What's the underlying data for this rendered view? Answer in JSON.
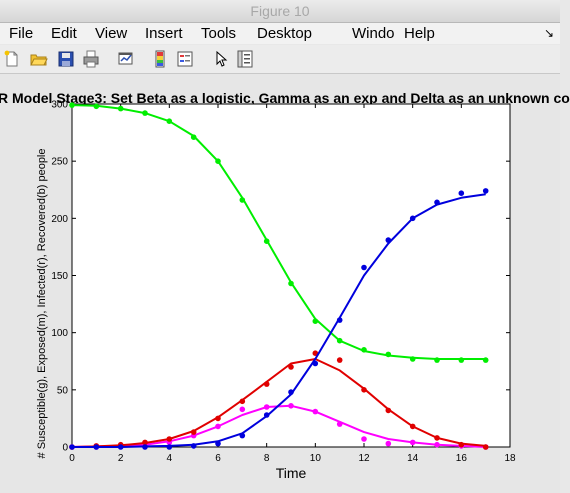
{
  "window": {
    "title": "Figure 10"
  },
  "menu": {
    "items": [
      "File",
      "Edit",
      "View",
      "Insert",
      "Tools",
      "Desktop",
      "Windo",
      "Help"
    ],
    "overflow_icon": "dock-arrow-icon"
  },
  "toolbar": {
    "icons": [
      "new-figure-icon",
      "open-file-icon",
      "save-icon",
      "print-icon",
      "link-plot-icon",
      "colorbar-icon",
      "legend-icon",
      "pointer-icon",
      "property-editor-icon"
    ]
  },
  "colors": {
    "susceptible": "#00ee00",
    "exposed": "#ff00ff",
    "infected": "#e00000",
    "recovered": "#0000dd"
  },
  "chart_data": {
    "type": "line",
    "title": "R Model Stage3: Set Beta as a logistic, Gamma as an exp and Delta as an unknown co",
    "xlabel": "Time",
    "ylabel": "# Susceptible(g), Exposed(m), Infected(r), Recovered(b) people",
    "xlim": [
      0,
      18
    ],
    "ylim": [
      0,
      300
    ],
    "xticks": [
      "0",
      "2",
      "4",
      "6",
      "8",
      "10",
      "12",
      "14",
      "16",
      "18"
    ],
    "yticks": [
      "0",
      "50",
      "100",
      "150",
      "200",
      "250",
      "300"
    ],
    "grid": false,
    "x": [
      0,
      1,
      2,
      3,
      4,
      5,
      6,
      7,
      8,
      9,
      10,
      11,
      12,
      13,
      14,
      15,
      16,
      17
    ],
    "series": [
      {
        "key": "susceptible",
        "points": [
          299,
          298,
          296,
          292,
          285,
          271,
          250,
          216,
          180,
          143,
          110,
          93,
          85,
          81,
          77,
          76,
          76,
          76
        ],
        "curve": [
          299,
          298.5,
          296,
          292,
          285,
          272,
          250,
          218,
          181,
          144,
          112,
          93,
          84,
          80,
          78,
          77,
          77,
          77
        ]
      },
      {
        "key": "exposed",
        "points": [
          0,
          0,
          1,
          2,
          4,
          10,
          18,
          33,
          35,
          36,
          31,
          20,
          7,
          3,
          4,
          2,
          1,
          0
        ],
        "curve": [
          0,
          0.5,
          1,
          2,
          5,
          10,
          18,
          28,
          35,
          36,
          31,
          22,
          13,
          7,
          4,
          2,
          1,
          0
        ]
      },
      {
        "key": "infected",
        "points": [
          0,
          1,
          2,
          4,
          7,
          13,
          25,
          40,
          55,
          70,
          82,
          76,
          50,
          32,
          18,
          8,
          2,
          0
        ],
        "curve": [
          0,
          0.5,
          1.5,
          3.5,
          7,
          14,
          26,
          41,
          57,
          73,
          77,
          67,
          51,
          33,
          18,
          8,
          3,
          1
        ]
      },
      {
        "key": "recovered",
        "points": [
          0,
          0,
          0,
          0,
          0,
          1,
          3,
          10,
          28,
          48,
          73,
          111,
          157,
          181,
          200,
          214,
          222,
          224
        ],
        "curve": [
          0,
          0,
          0,
          0.5,
          1,
          2,
          5,
          12,
          27,
          46,
          77,
          113,
          150,
          178,
          200,
          212,
          218,
          221
        ]
      }
    ]
  }
}
